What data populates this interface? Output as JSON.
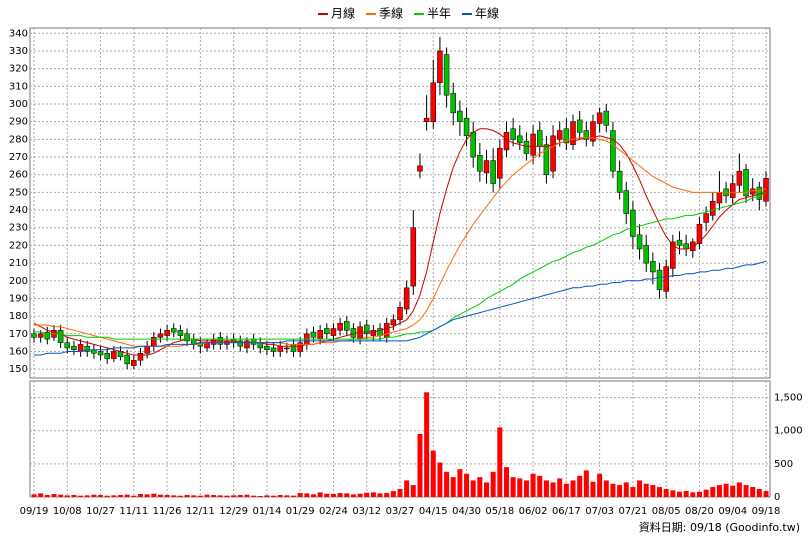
{
  "chart_data": [
    {
      "type": "candlestick",
      "categories": [
        "09/19",
        null,
        null,
        null,
        null,
        "10/08",
        null,
        null,
        null,
        null,
        "10/27",
        null,
        null,
        null,
        null,
        "11/11",
        null,
        null,
        null,
        null,
        "11/26",
        null,
        null,
        null,
        null,
        "12/11",
        null,
        null,
        null,
        null,
        "12/29",
        null,
        null,
        null,
        null,
        "01/14",
        null,
        null,
        null,
        null,
        "01/29",
        null,
        null,
        null,
        null,
        "02/24",
        null,
        null,
        null,
        null,
        "03/12",
        null,
        null,
        null,
        null,
        "03/27",
        null,
        null,
        null,
        null,
        "04/15",
        null,
        null,
        null,
        null,
        "04/30",
        null,
        null,
        null,
        null,
        "05/18",
        null,
        null,
        null,
        null,
        "06/02",
        null,
        null,
        null,
        null,
        "06/17",
        null,
        null,
        null,
        null,
        "07/03",
        null,
        null,
        null,
        null,
        "07/21",
        null,
        null,
        null,
        null,
        "08/05",
        null,
        null,
        null,
        null,
        "08/20",
        null,
        null,
        null,
        null,
        "09/04",
        null,
        null,
        null,
        null,
        "09/18"
      ],
      "open": [
        170,
        168,
        171,
        168,
        172,
        165,
        163,
        160,
        163,
        161,
        160,
        159,
        156,
        160,
        158,
        152,
        155,
        159,
        163,
        168,
        169,
        173,
        172,
        170,
        167,
        165,
        162,
        164,
        168,
        164,
        167,
        166,
        162,
        167,
        165,
        163,
        162,
        160,
        162,
        164,
        160,
        164,
        171,
        167,
        173,
        169,
        172,
        177,
        173,
        167,
        175,
        169,
        173,
        168,
        175,
        178,
        184,
        197,
        262,
        290,
        290,
        312,
        328,
        306,
        296,
        292,
        284,
        271,
        261,
        268,
        258,
        274,
        286,
        282,
        279,
        271,
        285,
        277,
        262,
        280,
        286,
        277,
        291,
        285,
        279,
        289,
        296,
        285,
        262,
        251,
        240,
        226,
        220,
        211,
        206,
        194,
        207,
        223,
        221,
        217,
        221,
        233,
        237,
        244,
        252,
        247,
        254,
        263,
        249,
        253,
        245
      ],
      "high": [
        173,
        172,
        174,
        175,
        175,
        168,
        166,
        167,
        166,
        164,
        163,
        162,
        163,
        163,
        161,
        158,
        162,
        166,
        171,
        173,
        175,
        176,
        175,
        173,
        170,
        168,
        167,
        170,
        171,
        169,
        170,
        169,
        168,
        170,
        168,
        166,
        165,
        166,
        165,
        167,
        168,
        173,
        174,
        175,
        176,
        176,
        179,
        180,
        176,
        177,
        178,
        175,
        176,
        179,
        181,
        188,
        200,
        240,
        272,
        305,
        325,
        338,
        332,
        312,
        302,
        298,
        290,
        278,
        274,
        275,
        280,
        290,
        292,
        288,
        284,
        288,
        290,
        282,
        288,
        290,
        292,
        294,
        296,
        290,
        294,
        298,
        300,
        290,
        268,
        256,
        245,
        232,
        226,
        216,
        210,
        212,
        226,
        228,
        226,
        224,
        236,
        242,
        250,
        262,
        256,
        260,
        272,
        266,
        258,
        256,
        262
      ],
      "low": [
        165,
        165,
        164,
        166,
        162,
        159,
        158,
        157,
        157,
        156,
        155,
        153,
        154,
        155,
        150,
        150,
        152,
        156,
        160,
        165,
        166,
        168,
        166,
        163,
        161,
        159,
        160,
        161,
        161,
        161,
        162,
        160,
        159,
        161,
        159,
        158,
        157,
        157,
        159,
        157,
        157,
        161,
        165,
        164,
        167,
        166,
        169,
        169,
        165,
        164,
        167,
        166,
        166,
        165,
        172,
        175,
        181,
        192,
        258,
        285,
        286,
        305,
        298,
        288,
        282,
        276,
        264,
        256,
        255,
        250,
        252,
        270,
        276,
        274,
        268,
        266,
        270,
        255,
        258,
        276,
        274,
        274,
        280,
        276,
        276,
        284,
        284,
        258,
        246,
        232,
        218,
        212,
        205,
        198,
        190,
        190,
        202,
        215,
        214,
        213,
        218,
        228,
        234,
        240,
        244,
        243,
        250,
        244,
        245,
        240,
        242
      ],
      "close": [
        168,
        170,
        167,
        172,
        165,
        162,
        161,
        164,
        160,
        159,
        158,
        156,
        160,
        157,
        153,
        155,
        159,
        163,
        168,
        170,
        172,
        171,
        169,
        166,
        164,
        163,
        165,
        167,
        164,
        166,
        165,
        163,
        166,
        164,
        162,
        161,
        160,
        163,
        162,
        160,
        165,
        170,
        168,
        172,
        170,
        173,
        176,
        172,
        168,
        174,
        170,
        172,
        169,
        176,
        178,
        185,
        196,
        230,
        265,
        292,
        312,
        330,
        305,
        295,
        290,
        282,
        270,
        262,
        268,
        255,
        275,
        284,
        280,
        278,
        272,
        283,
        276,
        260,
        282,
        285,
        278,
        290,
        284,
        280,
        290,
        295,
        288,
        262,
        250,
        238,
        225,
        218,
        210,
        205,
        195,
        208,
        222,
        220,
        218,
        222,
        232,
        238,
        245,
        250,
        248,
        255,
        262,
        248,
        252,
        246,
        258
      ],
      "up_color": "#ff0000",
      "down_color": "#00c000",
      "series": [
        {
          "name": "月線",
          "color": "#cc0000",
          "values": [
            176,
            174,
            172,
            171,
            170,
            168,
            167,
            166,
            165,
            164,
            163,
            162,
            161,
            160,
            159,
            158,
            158,
            158,
            159,
            161,
            163,
            165,
            166,
            167,
            167,
            166,
            166,
            166,
            166,
            166,
            166,
            165,
            165,
            165,
            165,
            164,
            164,
            163,
            163,
            163,
            163,
            164,
            164,
            165,
            166,
            167,
            168,
            169,
            170,
            171,
            171,
            171,
            172,
            173,
            174,
            176,
            178,
            183,
            192,
            205,
            222,
            238,
            252,
            264,
            273,
            280,
            284,
            286,
            286,
            285,
            283,
            280,
            278,
            277,
            276,
            276,
            276,
            276,
            277,
            278,
            279,
            279,
            280,
            281,
            281,
            282,
            281,
            280,
            277,
            272,
            265,
            257,
            248,
            240,
            232,
            225,
            220,
            218,
            218,
            219,
            222,
            226,
            231,
            236,
            240,
            243,
            246,
            247,
            248,
            249,
            250
          ]
        },
        {
          "name": "季線",
          "color": "#ff6a00",
          "values": [
            175,
            175,
            175,
            174,
            174,
            173,
            172,
            171,
            170,
            169,
            168,
            167,
            166,
            165,
            164,
            163,
            163,
            163,
            163,
            163,
            163,
            163,
            163,
            164,
            164,
            164,
            165,
            165,
            165,
            165,
            165,
            165,
            165,
            165,
            165,
            165,
            165,
            165,
            164,
            164,
            164,
            164,
            164,
            165,
            165,
            165,
            166,
            166,
            167,
            167,
            168,
            168,
            169,
            170,
            171,
            172,
            173,
            175,
            178,
            183,
            190,
            198,
            206,
            213,
            220,
            226,
            232,
            237,
            242,
            247,
            252,
            256,
            260,
            263,
            266,
            269,
            272,
            274,
            276,
            278,
            279,
            280,
            281,
            281,
            281,
            280,
            279,
            277,
            274,
            271,
            268,
            265,
            262,
            259,
            257,
            255,
            253,
            252,
            251,
            250,
            250,
            250,
            250,
            250,
            250,
            250,
            250,
            250,
            251,
            251,
            252
          ]
        },
        {
          "name": "半年",
          "color": "#00cc00",
          "values": [
            171,
            171,
            170,
            170,
            170,
            169,
            169,
            169,
            168,
            168,
            168,
            168,
            167,
            167,
            167,
            167,
            167,
            167,
            167,
            167,
            167,
            167,
            167,
            167,
            167,
            167,
            167,
            167,
            167,
            167,
            167,
            167,
            167,
            167,
            167,
            167,
            167,
            167,
            167,
            167,
            167,
            167,
            167,
            167,
            167,
            167,
            167,
            167,
            167,
            167,
            167,
            167,
            167,
            168,
            168,
            169,
            170,
            170,
            171,
            171,
            172,
            174,
            176,
            179,
            181,
            183,
            185,
            187,
            190,
            192,
            194,
            196,
            198,
            201,
            203,
            205,
            207,
            209,
            211,
            212,
            214,
            216,
            217,
            219,
            220,
            222,
            224,
            226,
            227,
            229,
            230,
            231,
            232,
            233,
            234,
            235,
            235,
            236,
            237,
            237,
            238,
            239,
            240,
            241,
            242,
            243,
            244,
            245,
            247,
            248,
            250
          ]
        },
        {
          "name": "年線",
          "color": "#0055cc",
          "values": [
            158,
            158,
            159,
            159,
            159,
            160,
            160,
            160,
            161,
            161,
            161,
            161,
            162,
            162,
            162,
            162,
            163,
            163,
            163,
            163,
            164,
            164,
            164,
            164,
            164,
            165,
            165,
            165,
            165,
            165,
            165,
            165,
            165,
            165,
            165,
            165,
            165,
            165,
            166,
            166,
            166,
            166,
            166,
            166,
            166,
            166,
            166,
            166,
            166,
            166,
            166,
            166,
            166,
            166,
            166,
            166,
            166,
            167,
            168,
            170,
            172,
            174,
            176,
            178,
            179,
            180,
            181,
            182,
            183,
            184,
            185,
            186,
            187,
            188,
            189,
            190,
            191,
            192,
            193,
            194,
            195,
            196,
            196,
            197,
            197,
            198,
            198,
            199,
            199,
            200,
            200,
            200,
            201,
            201,
            202,
            202,
            203,
            203,
            204,
            204,
            205,
            205,
            206,
            206,
            207,
            207,
            208,
            209,
            209,
            210,
            211
          ]
        }
      ],
      "ylim": [
        145,
        343
      ],
      "yticks": [
        150,
        160,
        170,
        180,
        190,
        200,
        210,
        220,
        230,
        240,
        250,
        260,
        270,
        280,
        290,
        300,
        310,
        320,
        330,
        340
      ],
      "grid": true,
      "legend": "top"
    },
    {
      "type": "bar",
      "values": [
        40,
        55,
        30,
        45,
        35,
        25,
        30,
        20,
        25,
        35,
        30,
        20,
        25,
        30,
        35,
        20,
        45,
        40,
        50,
        35,
        30,
        25,
        20,
        30,
        25,
        20,
        35,
        30,
        25,
        20,
        25,
        30,
        35,
        20,
        15,
        25,
        20,
        30,
        25,
        20,
        60,
        55,
        40,
        70,
        50,
        45,
        60,
        55,
        40,
        50,
        65,
        70,
        55,
        60,
        90,
        120,
        250,
        180,
        950,
        1580,
        700,
        520,
        380,
        300,
        420,
        350,
        250,
        300,
        220,
        380,
        1050,
        450,
        300,
        280,
        250,
        350,
        320,
        250,
        220,
        280,
        200,
        250,
        320,
        400,
        230,
        350,
        250,
        200,
        180,
        220,
        150,
        250,
        200,
        180,
        150,
        120,
        100,
        80,
        90,
        70,
        80,
        110,
        150,
        180,
        200,
        170,
        220,
        180,
        150,
        120,
        90
      ],
      "color": "#ff0000",
      "ylim": [
        0,
        1750
      ],
      "yticks": [
        0,
        500,
        {
          "value": 1000,
          "label": "1,000"
        },
        {
          "value": 1500,
          "label": "1,500"
        }
      ],
      "grid": true
    }
  ],
  "footer": "資料日期: 09/18 (Goodinfo.tw)"
}
